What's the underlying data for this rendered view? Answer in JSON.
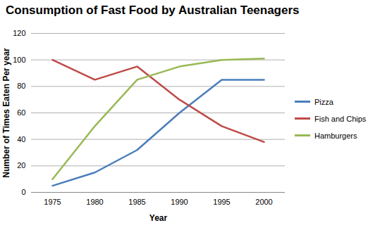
{
  "chart_data": {
    "type": "line",
    "title": "Consumption of Fast Food by Australian Teenagers",
    "x_label": "Year",
    "y_label": "Number of Times Eaten Per year",
    "categories": [
      "1975",
      "1980",
      "1985",
      "1990",
      "1995",
      "2000"
    ],
    "series": [
      {
        "name": "Pizza",
        "color": "#4a7ebb",
        "values": [
          5,
          15,
          32,
          60,
          85,
          85
        ]
      },
      {
        "name": "Fish and Chips",
        "color": "#be4b48",
        "values": [
          100,
          85,
          95,
          70,
          50,
          38
        ]
      },
      {
        "name": "Hamburgers",
        "color": "#98b954",
        "values": [
          10,
          50,
          85,
          95,
          100,
          101
        ]
      }
    ],
    "ylim": [
      0,
      120
    ],
    "yticks": [
      0,
      20,
      40,
      60,
      80,
      100,
      120
    ],
    "grid": true,
    "legend": "right",
    "marker": "none",
    "line_style": "solid"
  }
}
